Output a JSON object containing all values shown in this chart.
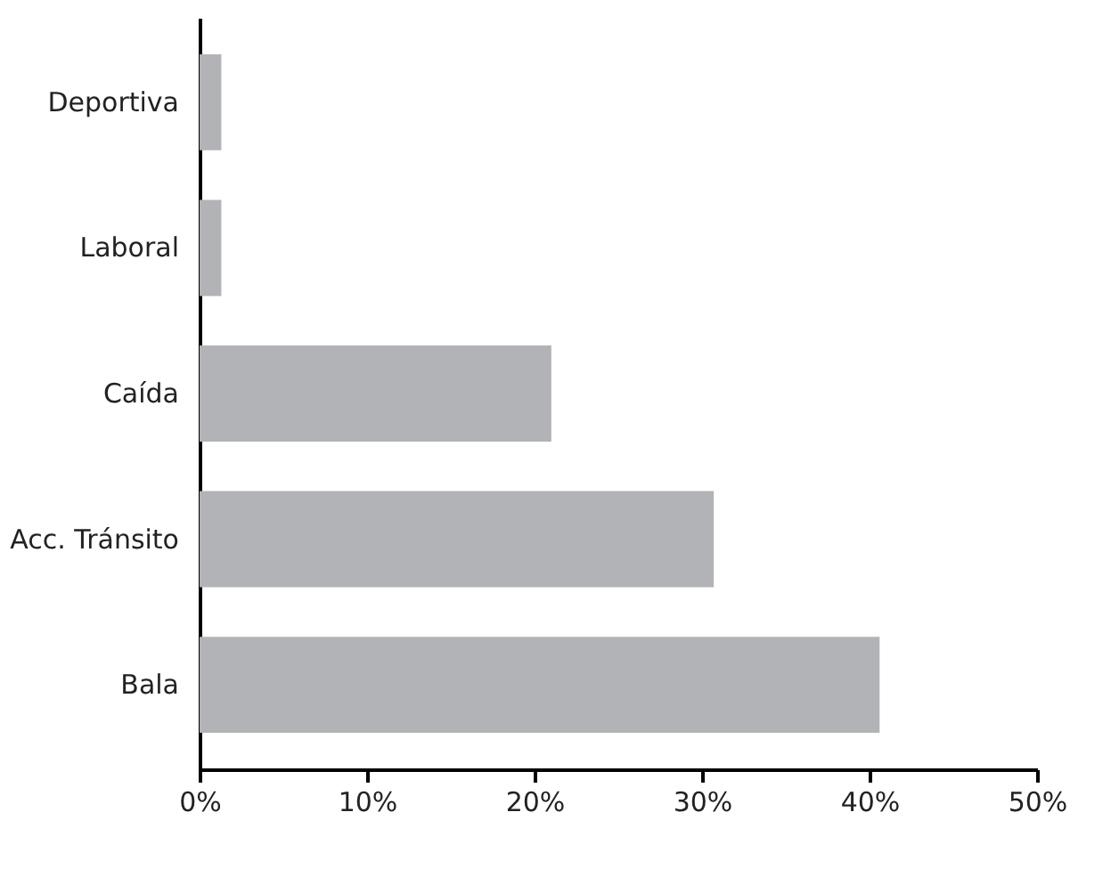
{
  "chart_data": {
    "type": "bar",
    "orientation": "horizontal",
    "categories": [
      "Deportiva",
      "Laboral",
      "Caída",
      "Acc. Tránsito",
      "Bala"
    ],
    "values": [
      1.3,
      1.3,
      21,
      30.7,
      40.6
    ],
    "color": "#b2b3b6",
    "xlim": [
      0,
      50
    ],
    "xticks": [
      {
        "value": 0,
        "label": "0%"
      },
      {
        "value": 10,
        "label": "10%"
      },
      {
        "value": 20,
        "label": "20%"
      },
      {
        "value": 30,
        "label": "30%"
      },
      {
        "value": 40,
        "label": "40%"
      },
      {
        "value": 50,
        "label": "50%"
      }
    ],
    "grid": false
  }
}
